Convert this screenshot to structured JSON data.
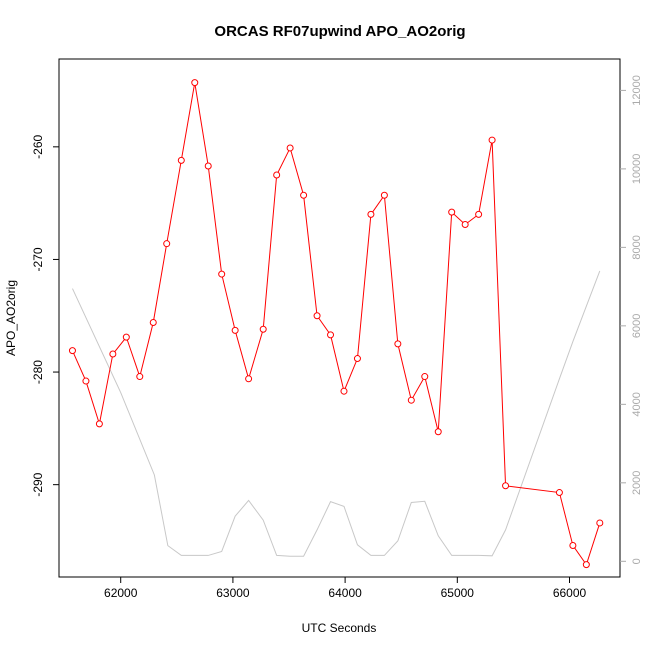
{
  "chart_data": {
    "type": "line",
    "title": "ORCAS RF07upwind APO_AO2orig",
    "xlabel": "UTC Seconds",
    "ylabel": "APO_AO2orig",
    "xlim": [
      61450,
      66450
    ],
    "ylim": [
      -298.2,
      -252.2
    ],
    "y2lim": [
      -400,
      12800
    ],
    "x_ticks": [
      62000,
      63000,
      64000,
      65000,
      66000
    ],
    "y_ticks": [
      -290,
      -280,
      -270,
      -260
    ],
    "y2_ticks": [
      0,
      2000,
      4000,
      6000,
      8000,
      10000,
      12000
    ],
    "grid": false,
    "series": [
      {
        "axis": "left",
        "color": "#ff0000",
        "marker": "open-circle",
        "x": [
          61570,
          61690,
          61810,
          61930,
          62050,
          62170,
          62290,
          62410,
          62540,
          62660,
          62780,
          62900,
          63020,
          63140,
          63270,
          63390,
          63510,
          63630,
          63750,
          63870,
          63990,
          64110,
          64230,
          64350,
          64470,
          64590,
          64710,
          64830,
          64950,
          65070,
          65190,
          65310,
          65430,
          65910,
          66030,
          66150,
          66270
        ],
        "y": [
          -278.1,
          -280.8,
          -284.6,
          -278.4,
          -276.9,
          -280.4,
          -275.6,
          -268.6,
          -261.2,
          -254.3,
          -261.7,
          -271.3,
          -276.3,
          -280.6,
          -276.2,
          -262.5,
          -260.1,
          -264.3,
          -275.0,
          -276.7,
          -281.7,
          -278.8,
          -266.0,
          -264.3,
          -277.5,
          -282.5,
          -280.4,
          -285.3,
          -265.8,
          -266.9,
          -266.0,
          -259.4,
          -290.1,
          -290.7,
          -295.4,
          -297.1,
          -293.4
        ]
      },
      {
        "axis": "right",
        "color": "#c8c8c8",
        "x": [
          61570,
          62000,
          62300,
          62420,
          62540,
          62660,
          62780,
          62900,
          63020,
          63140,
          63270,
          63390,
          63510,
          63630,
          63750,
          63870,
          63990,
          64110,
          64230,
          64350,
          64470,
          64590,
          64710,
          64830,
          64950,
          65070,
          65190,
          65310,
          65430,
          65910,
          66030,
          66150,
          66270
        ],
        "y": [
          6950,
          4300,
          2200,
          400,
          150,
          150,
          150,
          250,
          1150,
          1550,
          1050,
          150,
          130,
          130,
          800,
          1520,
          1400,
          420,
          150,
          150,
          520,
          1500,
          1530,
          650,
          150,
          150,
          150,
          140,
          800,
          4650,
          5600,
          6500,
          7400
        ]
      }
    ]
  }
}
